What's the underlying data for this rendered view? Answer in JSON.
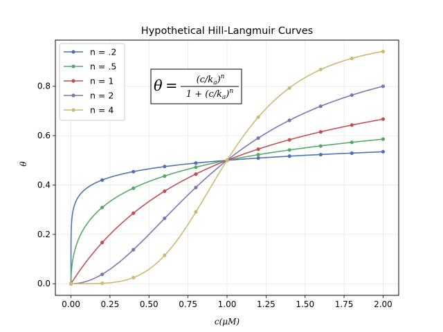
{
  "chart_data": {
    "type": "line",
    "title": "Hypothetical Hill-Langmuir Curves",
    "xlabel": "c(μM)",
    "ylabel": "θ",
    "xlim": [
      -0.1,
      2.1
    ],
    "ylim": [
      -0.047,
      0.987
    ],
    "xticks": [
      "0.00",
      "0.25",
      "0.50",
      "0.75",
      "1.00",
      "1.25",
      "1.50",
      "1.75",
      "2.00"
    ],
    "xtick_values": [
      0,
      0.25,
      0.5,
      0.75,
      1.0,
      1.25,
      1.5,
      1.75,
      2.0
    ],
    "yticks": [
      "0.0",
      "0.2",
      "0.4",
      "0.6",
      "0.8"
    ],
    "ytick_values": [
      0,
      0.2,
      0.4,
      0.6,
      0.8
    ],
    "grid": true,
    "legend_position": "upper-left",
    "annotation": {
      "lhs": "θ",
      "numerator": "(c/k",
      "numerator_sub": "a",
      "numerator_tail": ")",
      "numerator_sup": "n",
      "denominator_prefix": "1 + (c/k",
      "denominator_sub": "a",
      "denominator_tail": ")",
      "denominator_sup": "n"
    },
    "x": [
      0.0,
      0.2,
      0.4,
      0.6,
      0.8,
      1.0,
      1.2,
      1.4,
      1.6,
      1.8,
      2.0
    ],
    "series": [
      {
        "name": "n = .2",
        "n": 0.2,
        "color": "#4c72b0",
        "values": [
          0.0,
          0.42,
          0.454,
          0.475,
          0.489,
          0.5,
          0.509,
          0.517,
          0.523,
          0.529,
          0.535
        ]
      },
      {
        "name": "n = .5",
        "n": 0.5,
        "color": "#55a868",
        "values": [
          0.0,
          0.309,
          0.387,
          0.436,
          0.472,
          0.5,
          0.523,
          0.542,
          0.558,
          0.573,
          0.586
        ]
      },
      {
        "name": "n = 1",
        "n": 1,
        "color": "#c44e52",
        "values": [
          0.0,
          0.167,
          0.286,
          0.375,
          0.444,
          0.5,
          0.545,
          0.583,
          0.615,
          0.643,
          0.667
        ]
      },
      {
        "name": "n = 2",
        "n": 2,
        "color": "#8172b2",
        "values": [
          0.0,
          0.038,
          0.138,
          0.265,
          0.39,
          0.5,
          0.59,
          0.662,
          0.719,
          0.764,
          0.8
        ]
      },
      {
        "name": "n = 4",
        "n": 4,
        "color": "#ccb974",
        "values": [
          0.0,
          0.002,
          0.025,
          0.115,
          0.291,
          0.5,
          0.675,
          0.793,
          0.868,
          0.913,
          0.941
        ]
      }
    ]
  }
}
